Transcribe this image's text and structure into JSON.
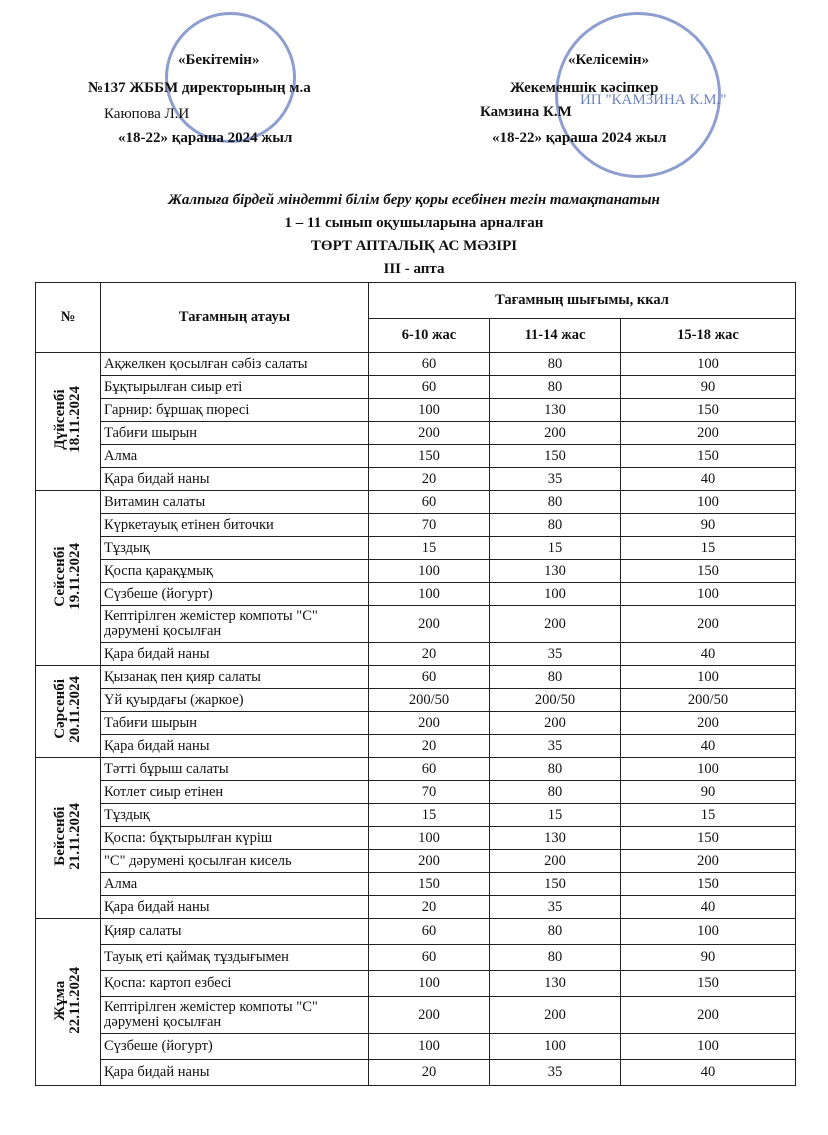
{
  "header": {
    "left": [
      "«Бекітемін»",
      "№137 ЖББМ директорының м.а",
      "Каюпова Л.И",
      "«18-22» қараша 2024 жыл"
    ],
    "right": [
      "«Келісемін»",
      "Жекеменшік кәсіпкер",
      "Камзина К.М",
      "«18-22» қараша 2024 жыл"
    ],
    "stamp": "ИП \"КАМЗИНА К.М.\""
  },
  "title": [
    "Жалпыға бірдей міндетті білім беру қоры есебінен тегін тамақтанатын",
    "1 – 11 сынып оқушыларына арналған",
    "ТӨРТ АПТАЛЫҚ АС МӘЗІРІ",
    "III - апта"
  ],
  "table": {
    "columns": {
      "number": "№",
      "name": "Тағамның атауы",
      "output": "Тағамның шығымы, ккал",
      "ages": [
        "6-10 жас",
        "11-14 жас",
        "15-18 жас"
      ]
    },
    "days": [
      {
        "day": "Дүйсенбі",
        "date": "18.11.2024",
        "rows": [
          [
            "Ақжелкен қосылған сәбіз салаты",
            60,
            80,
            100
          ],
          [
            "Бұқтырылған сиыр еті",
            60,
            80,
            90
          ],
          [
            "Гарнир: бұршақ пюресі",
            100,
            130,
            150
          ],
          [
            "Табиғи шырын",
            200,
            200,
            200
          ],
          [
            "Алма",
            150,
            150,
            150
          ],
          [
            "Қара бидай наны",
            20,
            35,
            40
          ]
        ]
      },
      {
        "day": "Сейсенбі",
        "date": "19.11.2024",
        "rows": [
          [
            "Витамин салаты",
            60,
            80,
            100
          ],
          [
            "Күркетауық етінен биточки",
            70,
            80,
            90
          ],
          [
            "Тұздық",
            15,
            15,
            15
          ],
          [
            "Қоспа қарақұмық",
            100,
            130,
            150
          ],
          [
            "Сүзбеше (йогурт)",
            100,
            100,
            100
          ],
          [
            "Кептірілген жемістер компоты \"С\" дәрумені қосылған",
            200,
            200,
            200
          ],
          [
            "Қара бидай наны",
            20,
            35,
            40
          ]
        ]
      },
      {
        "day": "Сәрсенбі",
        "date": "20.11.2024",
        "rows": [
          [
            "Қызанақ пен қияр салаты",
            60,
            80,
            100
          ],
          [
            "Үй қуырдағы (жаркое)",
            "200/50",
            "200/50",
            "200/50"
          ],
          [
            "Табиғи шырын",
            200,
            200,
            200
          ],
          [
            "Қара бидай наны",
            20,
            35,
            40
          ]
        ]
      },
      {
        "day": "Бейсенбі",
        "date": "21.11.2024",
        "rows": [
          [
            "Тәтті бұрыш салаты",
            60,
            80,
            100
          ],
          [
            "Котлет сиыр етінен",
            70,
            80,
            90
          ],
          [
            "Тұздық",
            15,
            15,
            15
          ],
          [
            "Қоспа: бұқтырылған күріш",
            100,
            130,
            150
          ],
          [
            "\"С\" дәрумені қосылған кисель",
            200,
            200,
            200
          ],
          [
            "Алма",
            150,
            150,
            150
          ],
          [
            "Қара бидай наны",
            20,
            35,
            40
          ]
        ]
      },
      {
        "day": "Жұма",
        "date": "22.11.2024",
        "rows": [
          [
            "Қияр салаты",
            60,
            80,
            100
          ],
          [
            "Тауық еті қаймақ тұздығымен",
            60,
            80,
            90
          ],
          [
            "Қоспа: картоп езбесі",
            100,
            130,
            150
          ],
          [
            "Кептірілген жемістер компоты \"С\" дәрумені қосылған",
            200,
            200,
            200
          ],
          [
            "Сүзбеше (йогурт)",
            100,
            100,
            100
          ],
          [
            "Қара бидай наны",
            20,
            35,
            40
          ]
        ]
      }
    ]
  }
}
